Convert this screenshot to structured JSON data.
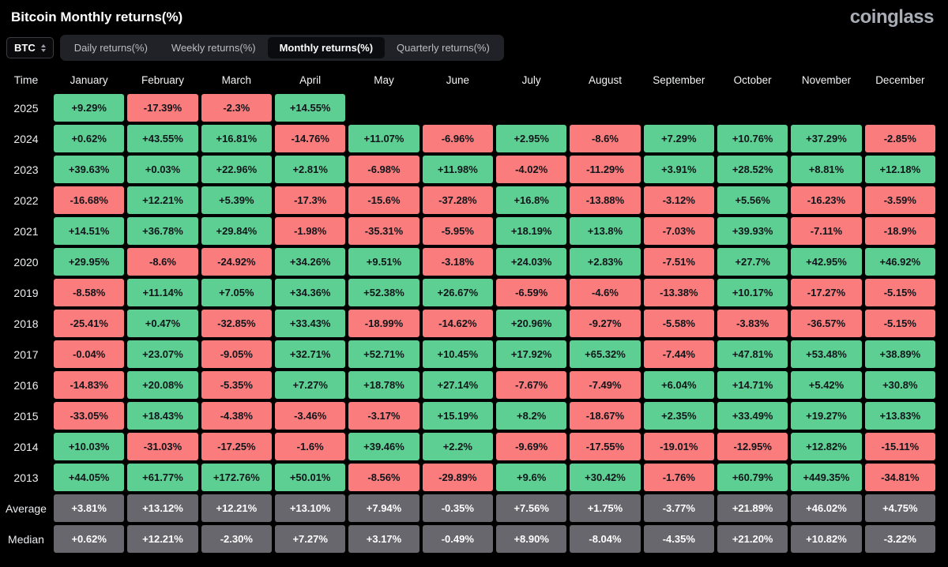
{
  "meta": {
    "title": "Bitcoin Monthly returns(%)",
    "logo": "coinglass"
  },
  "controls": {
    "symbol": "BTC",
    "tabs": [
      {
        "label": "Daily returns(%)",
        "active": false
      },
      {
        "label": "Weekly returns(%)",
        "active": false
      },
      {
        "label": "Monthly returns(%)",
        "active": true
      },
      {
        "label": "Quarterly returns(%)",
        "active": false
      }
    ]
  },
  "chart_data": {
    "type": "heatmap",
    "title": "Bitcoin Monthly returns(%)",
    "col_header": "Time",
    "columns": [
      "January",
      "February",
      "March",
      "April",
      "May",
      "June",
      "July",
      "August",
      "September",
      "October",
      "November",
      "December"
    ],
    "year_rows": [
      {
        "label": "2025",
        "values": [
          9.29,
          -17.39,
          -2.3,
          14.55,
          null,
          null,
          null,
          null,
          null,
          null,
          null,
          null
        ]
      },
      {
        "label": "2024",
        "values": [
          0.62,
          43.55,
          16.81,
          -14.76,
          11.07,
          -6.96,
          2.95,
          -8.6,
          7.29,
          10.76,
          37.29,
          -2.85
        ]
      },
      {
        "label": "2023",
        "values": [
          39.63,
          0.03,
          22.96,
          2.81,
          -6.98,
          11.98,
          -4.02,
          -11.29,
          3.91,
          28.52,
          8.81,
          12.18
        ]
      },
      {
        "label": "2022",
        "values": [
          -16.68,
          12.21,
          5.39,
          -17.3,
          -15.6,
          -37.28,
          16.8,
          -13.88,
          -3.12,
          5.56,
          -16.23,
          -3.59
        ]
      },
      {
        "label": "2021",
        "values": [
          14.51,
          36.78,
          29.84,
          -1.98,
          -35.31,
          -5.95,
          18.19,
          13.8,
          -7.03,
          39.93,
          -7.11,
          -18.9
        ]
      },
      {
        "label": "2020",
        "values": [
          29.95,
          -8.6,
          -24.92,
          34.26,
          9.51,
          -3.18,
          24.03,
          2.83,
          -7.51,
          27.7,
          42.95,
          46.92
        ]
      },
      {
        "label": "2019",
        "values": [
          -8.58,
          11.14,
          7.05,
          34.36,
          52.38,
          26.67,
          -6.59,
          -4.6,
          -13.38,
          10.17,
          -17.27,
          -5.15
        ]
      },
      {
        "label": "2018",
        "values": [
          -25.41,
          0.47,
          -32.85,
          33.43,
          -18.99,
          -14.62,
          20.96,
          -9.27,
          -5.58,
          -3.83,
          -36.57,
          -5.15
        ]
      },
      {
        "label": "2017",
        "values": [
          -0.04,
          23.07,
          -9.05,
          32.71,
          52.71,
          10.45,
          17.92,
          65.32,
          -7.44,
          47.81,
          53.48,
          38.89
        ]
      },
      {
        "label": "2016",
        "values": [
          -14.83,
          20.08,
          -5.35,
          7.27,
          18.78,
          27.14,
          -7.67,
          -7.49,
          6.04,
          14.71,
          5.42,
          30.8
        ]
      },
      {
        "label": "2015",
        "values": [
          -33.05,
          18.43,
          -4.38,
          -3.46,
          -3.17,
          15.19,
          8.2,
          -18.67,
          2.35,
          33.49,
          19.27,
          13.83
        ]
      },
      {
        "label": "2014",
        "values": [
          10.03,
          -31.03,
          -17.25,
          -1.6,
          39.46,
          2.2,
          -9.69,
          -17.55,
          -19.01,
          -12.95,
          12.82,
          -15.11
        ]
      },
      {
        "label": "2013",
        "values": [
          44.05,
          61.77,
          172.76,
          50.01,
          -8.56,
          -29.89,
          9.6,
          30.42,
          -1.76,
          60.79,
          449.35,
          -34.81
        ]
      }
    ],
    "summary_rows": [
      {
        "label": "Average",
        "values": [
          3.81,
          13.12,
          12.21,
          13.1,
          7.94,
          -0.35,
          7.56,
          1.75,
          -3.77,
          21.89,
          46.02,
          4.75
        ]
      },
      {
        "label": "Median",
        "values": [
          0.62,
          12.21,
          -2.3,
          7.27,
          3.17,
          -0.49,
          8.9,
          -8.04,
          -4.35,
          21.2,
          10.82,
          -3.22
        ]
      }
    ],
    "colors": {
      "positive": "#5ecf92",
      "negative": "#fa7c7c",
      "summary_bg": "#67676d",
      "cell_text": "#10151b",
      "summary_text": "#ffffff"
    }
  }
}
